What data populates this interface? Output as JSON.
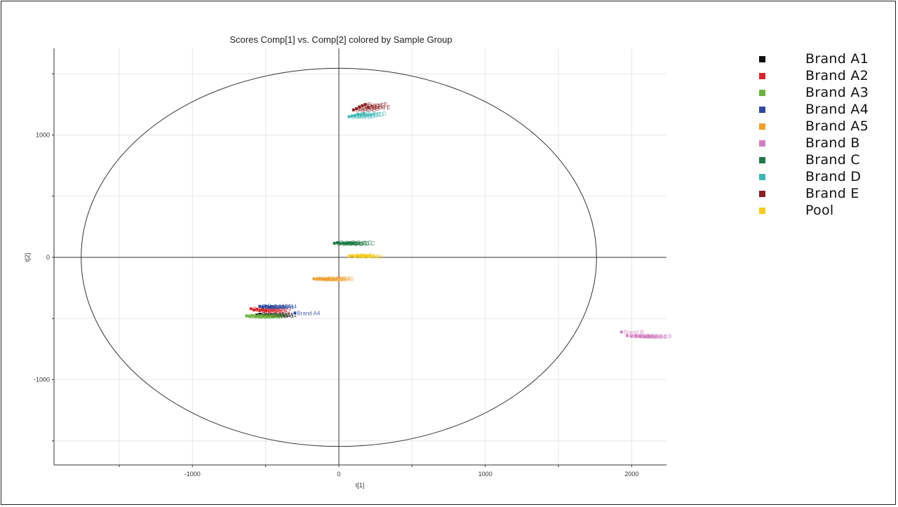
{
  "chart_data": {
    "type": "scatter",
    "title": "Scores Comp[1] vs. Comp[2] colored by Sample Group",
    "xlabel": "t[1]",
    "ylabel": "t[2]",
    "xlim": [
      -1950,
      2250
    ],
    "ylim": [
      -1700,
      1700
    ],
    "xticks": [
      -1000,
      0,
      1000,
      2000
    ],
    "yticks": [
      -1000,
      0,
      1000
    ],
    "grid": true,
    "legend_position": "right",
    "ellipse": {
      "center": [
        0,
        0
      ],
      "rx": 1760,
      "ry": 1545
    },
    "series": [
      {
        "name": "Brand A1",
        "color": "#111111",
        "point_label": "Brand A1",
        "points": [
          [
            -560,
            -470
          ],
          [
            -540,
            -465
          ],
          [
            -520,
            -472
          ],
          [
            -500,
            -468
          ],
          [
            -480,
            -475
          ],
          [
            -460,
            -470
          ]
        ]
      },
      {
        "name": "Brand A2",
        "color": "#d7262b",
        "point_label": "Brand A2",
        "points": [
          [
            -600,
            -420
          ],
          [
            -580,
            -430
          ],
          [
            -560,
            -425
          ],
          [
            -540,
            -435
          ],
          [
            -520,
            -428
          ],
          [
            -500,
            -438
          ]
        ]
      },
      {
        "name": "Brand A3",
        "color": "#6db33f",
        "point_label": "Brand A3",
        "points": [
          [
            -630,
            -478
          ],
          [
            -610,
            -482
          ],
          [
            -590,
            -476
          ],
          [
            -570,
            -484
          ],
          [
            -550,
            -480
          ],
          [
            -530,
            -478
          ]
        ]
      },
      {
        "name": "Brand A4",
        "color": "#2e4a9e",
        "point_label": "Brand A4",
        "points": [
          [
            -540,
            -400
          ],
          [
            -520,
            -405
          ],
          [
            -500,
            -398
          ],
          [
            -480,
            -408
          ],
          [
            -460,
            -402
          ],
          [
            -300,
            -455
          ]
        ]
      },
      {
        "name": "Brand A5",
        "color": "#f0a030",
        "point_label": "Brand A5",
        "points": [
          [
            -170,
            -175
          ],
          [
            -150,
            -178
          ],
          [
            -130,
            -172
          ],
          [
            -110,
            -180
          ],
          [
            -90,
            -176
          ],
          [
            -70,
            -174
          ]
        ]
      },
      {
        "name": "Brand B",
        "color": "#d27fc0",
        "point_label": "Brand B",
        "points": [
          [
            1930,
            -610
          ],
          [
            1970,
            -640
          ],
          [
            2000,
            -645
          ],
          [
            2030,
            -642
          ],
          [
            2060,
            -645
          ],
          [
            2090,
            -648
          ],
          [
            2120,
            -645
          ]
        ]
      },
      {
        "name": "Brand C",
        "color": "#1e7a45",
        "point_label": "Brand C",
        "points": [
          [
            -30,
            115
          ],
          [
            -10,
            120
          ],
          [
            10,
            112
          ],
          [
            30,
            118
          ],
          [
            50,
            114
          ],
          [
            70,
            120
          ],
          [
            90,
            116
          ]
        ]
      },
      {
        "name": "Brand D",
        "color": "#3fb8b5",
        "point_label": "Brand D",
        "points": [
          [
            70,
            1150
          ],
          [
            90,
            1155
          ],
          [
            110,
            1160
          ],
          [
            130,
            1170
          ],
          [
            150,
            1165
          ],
          [
            170,
            1175
          ]
        ]
      },
      {
        "name": "Brand E",
        "color": "#8b2124",
        "point_label": "Brand E",
        "points": [
          [
            100,
            1205
          ],
          [
            120,
            1215
          ],
          [
            140,
            1230
          ],
          [
            160,
            1240
          ],
          [
            180,
            1250
          ],
          [
            200,
            1225
          ]
        ]
      },
      {
        "name": "Pool",
        "color": "#f5cc1d",
        "point_label": "Pool",
        "points": [
          [
            70,
            10
          ],
          [
            90,
            14
          ],
          [
            110,
            8
          ],
          [
            130,
            16
          ],
          [
            150,
            12
          ],
          [
            170,
            10
          ],
          [
            190,
            14
          ],
          [
            210,
            9
          ]
        ]
      }
    ]
  }
}
